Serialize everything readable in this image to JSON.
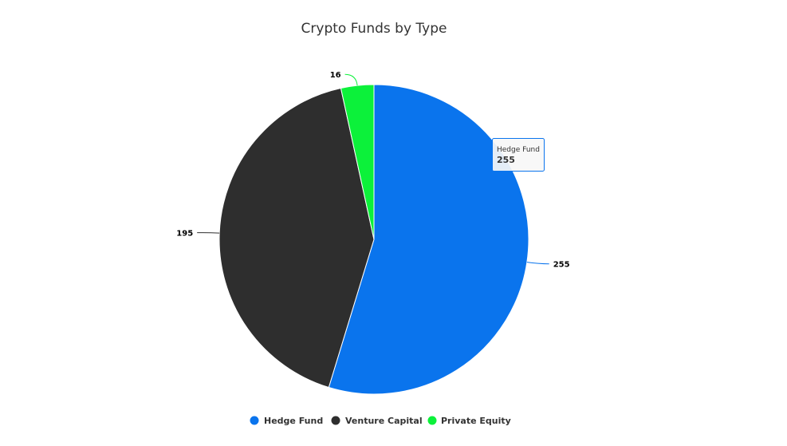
{
  "chart_data": {
    "type": "pie",
    "title": "Crypto Funds by Type",
    "categories": [
      "Hedge Fund",
      "Venture Capital",
      "Private Equity"
    ],
    "values": [
      255,
      195,
      16
    ],
    "colors": [
      "#0a74ed",
      "#2e2e2e",
      "#0cf13a"
    ],
    "data_labels": [
      "255",
      "195",
      "16"
    ],
    "legend": {
      "position": "bottom",
      "items": [
        {
          "label": "Hedge Fund",
          "color": "#0a74ed"
        },
        {
          "label": "Venture Capital",
          "color": "#2e2e2e"
        },
        {
          "label": "Private Equity",
          "color": "#0cf13a"
        }
      ]
    },
    "tooltip": {
      "name": "Hedge Fund",
      "value": "255"
    }
  }
}
